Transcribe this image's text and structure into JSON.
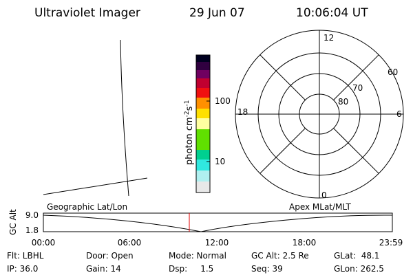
{
  "header": {
    "instrument": "Ultraviolet Imager",
    "date": "29 Jun 07",
    "time": "10:06:04 UT"
  },
  "colorbar": {
    "unit_label": "photon cm",
    "exp1": "-2",
    "mid": "s",
    "exp2": "-1",
    "ticks": [
      "100",
      "10"
    ]
  },
  "polar": {
    "mlt_labels": [
      "12",
      "6",
      "0",
      "18"
    ],
    "lat_labels": [
      "60",
      "70",
      "80"
    ]
  },
  "strip": {
    "left_label": "Geographic Lat/Lon",
    "right_label": "Apex MLat/MLT",
    "y_label": "GC Alt",
    "y_ticks": [
      "9.0",
      "1.8"
    ],
    "time_ticks": [
      "00:00",
      "06:00",
      "12:00",
      "18:00",
      "23:59"
    ]
  },
  "info": {
    "rows": [
      [
        "Flt: LBHL",
        "Door: Open",
        "Mode: Normal",
        "GC Alt: 2.5 Re",
        "GLat:  48.1"
      ],
      [
        "IP: 36.0",
        "Gain: 14",
        "Dsp:     1.5",
        "Seq: 39",
        "GLon: 262.5"
      ]
    ]
  }
}
